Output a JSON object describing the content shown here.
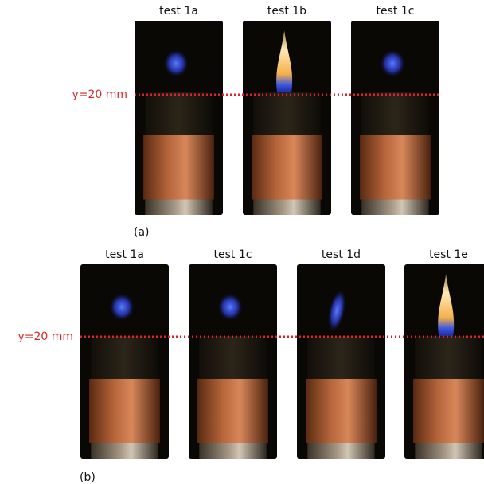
{
  "panels": [
    {
      "reference_label": "y=20 mm",
      "photos": [
        "test 1a",
        "test 1b",
        "test 1c"
      ],
      "label": "(a)"
    },
    {
      "reference_label": "y=20 mm",
      "photos": [
        "test 1a",
        "test 1c",
        "test 1d",
        "test 1e"
      ],
      "label": "(b)"
    }
  ]
}
